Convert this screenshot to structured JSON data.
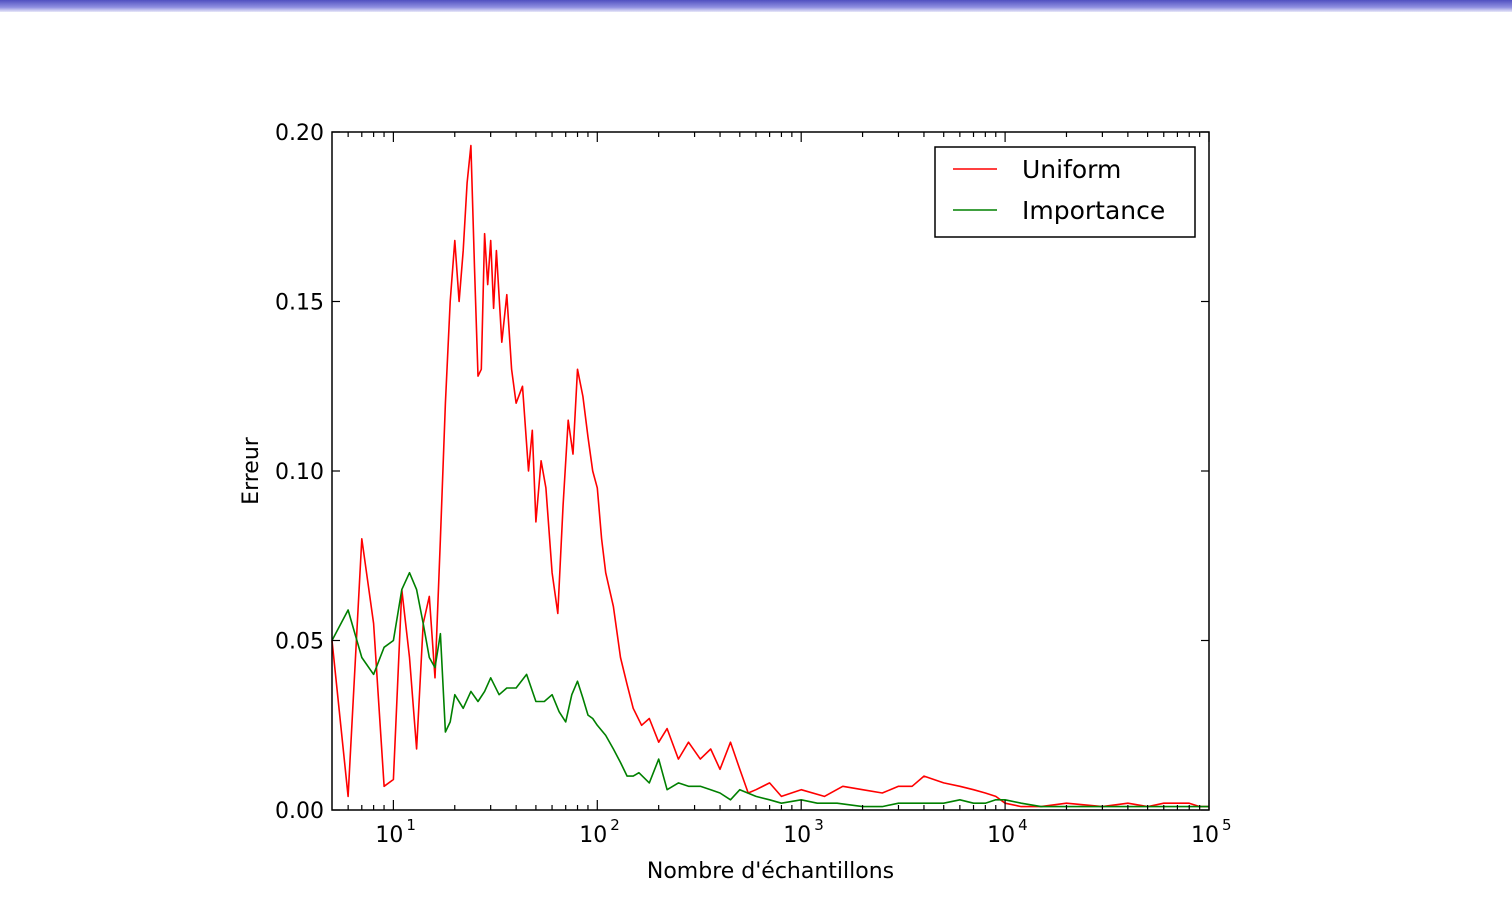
{
  "colors": {
    "slide_bar": "#6b6bd6",
    "uniform": "#ff0000",
    "importance": "#008000"
  },
  "chart_data": {
    "type": "line",
    "title": "",
    "xlabel": "Nombre d'échantillons",
    "ylabel": "Erreur",
    "xscale": "log",
    "xlim": [
      5,
      100000
    ],
    "ylim": [
      0,
      0.2
    ],
    "yticks": [
      "0.00",
      "0.05",
      "0.10",
      "0.15",
      "0.20"
    ],
    "xticks": [
      {
        "value": 10,
        "base": "10",
        "exp": "1"
      },
      {
        "value": 100,
        "base": "10",
        "exp": "2"
      },
      {
        "value": 1000,
        "base": "10",
        "exp": "3"
      },
      {
        "value": 10000,
        "base": "10",
        "exp": "4"
      },
      {
        "value": 100000,
        "base": "10",
        "exp": "5"
      }
    ],
    "grid": false,
    "legend": "top-right",
    "series": [
      {
        "name": "Uniform",
        "color": "#ff0000",
        "x": [
          5,
          6,
          7,
          8,
          9,
          10,
          11,
          12,
          13,
          14,
          15,
          16,
          17,
          18,
          19,
          20,
          21,
          22,
          23,
          24,
          25,
          26,
          27,
          28,
          29,
          30,
          31,
          32,
          34,
          36,
          38,
          40,
          43,
          46,
          48,
          50,
          53,
          56,
          60,
          64,
          68,
          72,
          76,
          80,
          85,
          90,
          95,
          100,
          105,
          110,
          120,
          130,
          140,
          150,
          165,
          180,
          200,
          220,
          250,
          280,
          320,
          360,
          400,
          450,
          500,
          550,
          600,
          700,
          800,
          1000,
          1300,
          1600,
          2000,
          2500,
          3000,
          3500,
          4000,
          5000,
          6000,
          7000,
          8000,
          9000,
          10000,
          12000,
          15000,
          20000,
          30000,
          40000,
          50000,
          60000,
          70000,
          80000,
          90000,
          100000
        ],
        "y": [
          0.05,
          0.004,
          0.08,
          0.055,
          0.007,
          0.009,
          0.065,
          0.045,
          0.018,
          0.055,
          0.063,
          0.039,
          0.08,
          0.12,
          0.15,
          0.168,
          0.15,
          0.165,
          0.185,
          0.196,
          0.16,
          0.128,
          0.13,
          0.17,
          0.155,
          0.168,
          0.148,
          0.165,
          0.138,
          0.152,
          0.13,
          0.12,
          0.125,
          0.1,
          0.112,
          0.085,
          0.103,
          0.095,
          0.07,
          0.058,
          0.09,
          0.115,
          0.105,
          0.13,
          0.122,
          0.11,
          0.1,
          0.095,
          0.08,
          0.07,
          0.06,
          0.045,
          0.037,
          0.03,
          0.025,
          0.027,
          0.02,
          0.024,
          0.015,
          0.02,
          0.015,
          0.018,
          0.012,
          0.02,
          0.012,
          0.005,
          0.006,
          0.008,
          0.004,
          0.006,
          0.004,
          0.007,
          0.006,
          0.005,
          0.007,
          0.007,
          0.01,
          0.008,
          0.007,
          0.006,
          0.005,
          0.004,
          0.002,
          0.001,
          0.001,
          0.002,
          0.001,
          0.002,
          0.001,
          0.002,
          0.002,
          0.002,
          0.001,
          0.001
        ]
      },
      {
        "name": "Importance",
        "color": "#008000",
        "x": [
          5,
          6,
          7,
          8,
          9,
          10,
          11,
          12,
          13,
          14,
          15,
          16,
          17,
          18,
          19,
          20,
          22,
          24,
          26,
          28,
          30,
          33,
          36,
          40,
          45,
          50,
          55,
          60,
          65,
          70,
          75,
          80,
          85,
          90,
          95,
          100,
          110,
          120,
          130,
          140,
          150,
          160,
          180,
          200,
          220,
          250,
          280,
          320,
          360,
          400,
          450,
          500,
          600,
          700,
          800,
          1000,
          1200,
          1500,
          2000,
          2500,
          3000,
          4000,
          5000,
          6000,
          7000,
          8000,
          9000,
          10000,
          12000,
          15000,
          20000,
          30000,
          40000,
          60000,
          80000,
          100000
        ],
        "y": [
          0.05,
          0.059,
          0.045,
          0.04,
          0.048,
          0.05,
          0.065,
          0.07,
          0.065,
          0.055,
          0.045,
          0.042,
          0.052,
          0.023,
          0.026,
          0.034,
          0.03,
          0.035,
          0.032,
          0.035,
          0.039,
          0.034,
          0.036,
          0.036,
          0.04,
          0.032,
          0.032,
          0.034,
          0.029,
          0.026,
          0.034,
          0.038,
          0.033,
          0.028,
          0.027,
          0.025,
          0.022,
          0.018,
          0.014,
          0.01,
          0.01,
          0.011,
          0.008,
          0.015,
          0.006,
          0.008,
          0.007,
          0.007,
          0.006,
          0.005,
          0.003,
          0.006,
          0.004,
          0.003,
          0.002,
          0.003,
          0.002,
          0.002,
          0.001,
          0.001,
          0.002,
          0.002,
          0.002,
          0.003,
          0.002,
          0.002,
          0.003,
          0.003,
          0.002,
          0.001,
          0.001,
          0.001,
          0.001,
          0.001,
          0.001,
          0.001
        ]
      }
    ]
  }
}
